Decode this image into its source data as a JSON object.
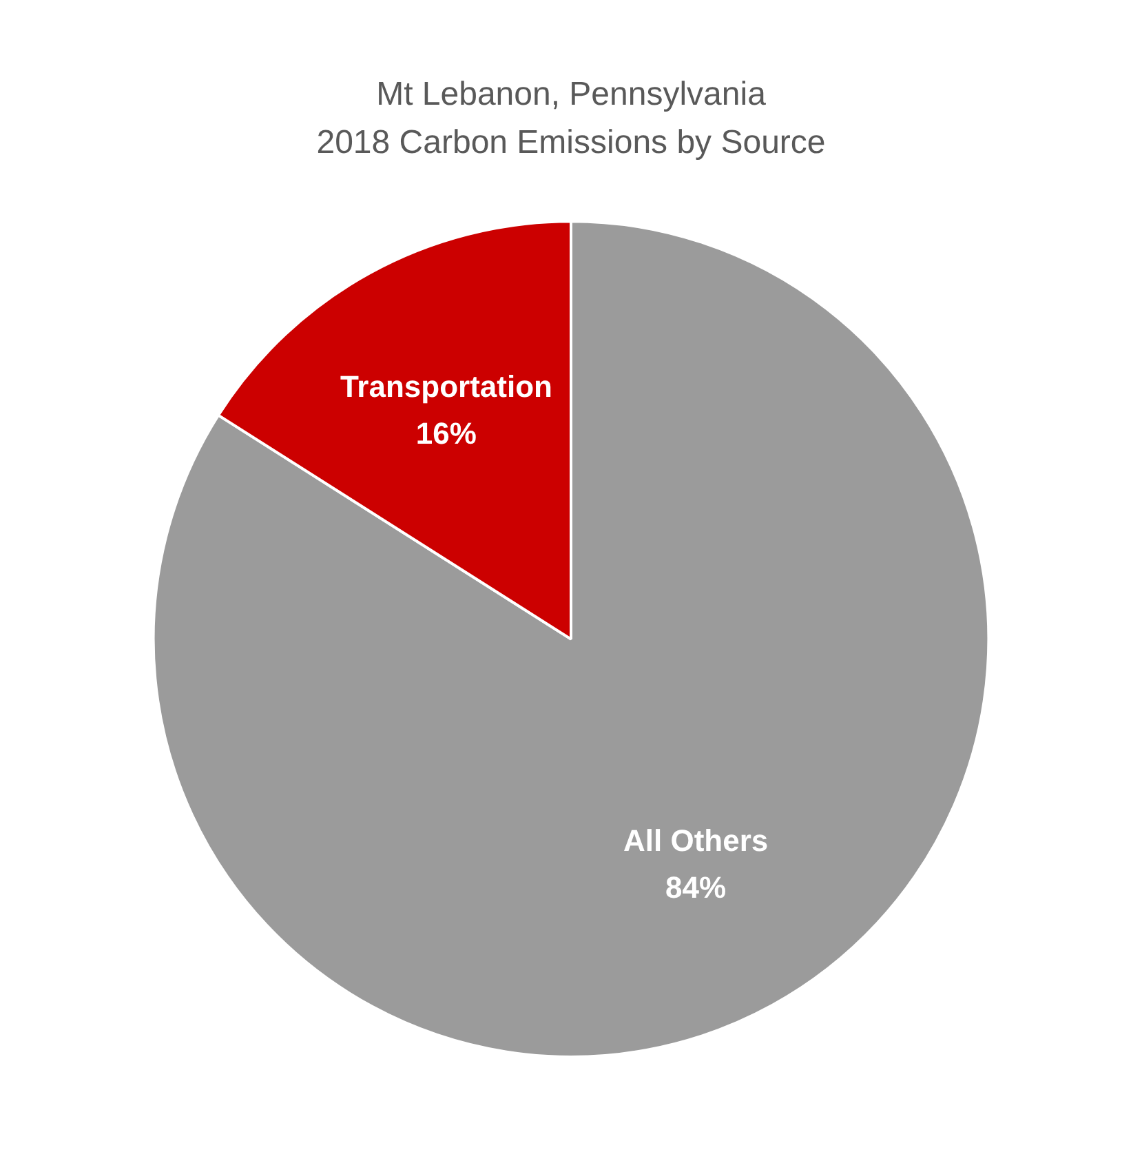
{
  "chart_data": {
    "type": "pie",
    "title": "Mt Lebanon, Pennsylvania",
    "subtitle": "2018 Carbon Emissions by Source",
    "categories": [
      "All Others",
      "Transportation"
    ],
    "values": [
      84,
      16
    ],
    "colors": [
      "#9b9b9b",
      "#cc0000"
    ],
    "value_labels": [
      "84%",
      "16%"
    ],
    "legend": false
  }
}
